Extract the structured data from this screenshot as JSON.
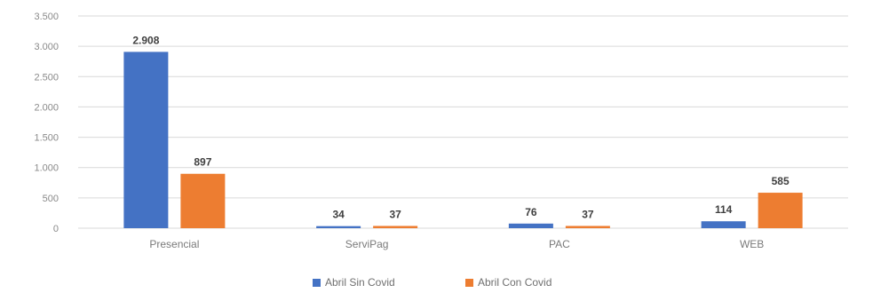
{
  "chart_data": {
    "type": "bar",
    "categories": [
      "Presencial",
      "ServiPag",
      "PAC",
      "WEB"
    ],
    "series": [
      {
        "name": "Abril Sin Covid",
        "color": "#4472C4",
        "values": [
          2908,
          34,
          76,
          114
        ],
        "labels": [
          "2.908",
          "34",
          "76",
          "114"
        ]
      },
      {
        "name": "Abril Con Covid",
        "color": "#ED7D31",
        "values": [
          897,
          37,
          37,
          585
        ],
        "labels": [
          "897",
          "37",
          "37",
          "585"
        ]
      }
    ],
    "ylim": [
      0,
      3500
    ],
    "yticks": [
      0,
      500,
      1000,
      1500,
      2000,
      2500,
      3000,
      3500
    ],
    "ytick_labels": [
      "0",
      "500",
      "1.000",
      "1.500",
      "2.000",
      "2.500",
      "3.000",
      "3.500"
    ],
    "grid": true,
    "legend_position": "bottom"
  }
}
